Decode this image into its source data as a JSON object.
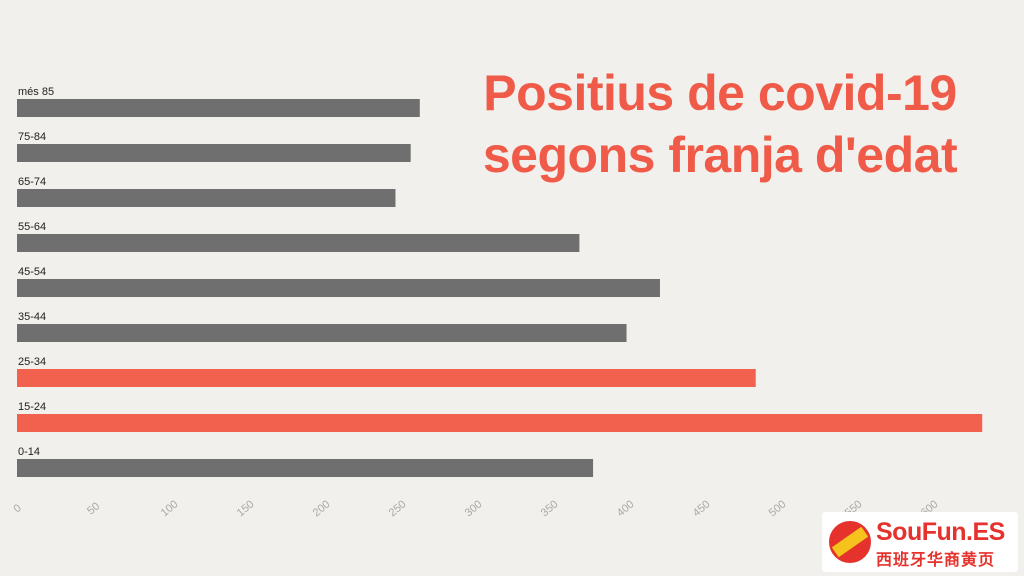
{
  "chart_data": {
    "type": "bar",
    "orientation": "horizontal",
    "title": [
      "Positius de covid-19",
      "segons franja d'edat"
    ],
    "categories": [
      "més 85",
      "75-84",
      "65-74",
      "55-64",
      "45-54",
      "35-44",
      "25-34",
      "15-24",
      "0-14"
    ],
    "values": [
      265,
      259,
      249,
      370,
      423,
      401,
      486,
      635,
      379
    ],
    "highlighted": [
      "25-34",
      "15-24"
    ],
    "xlim": [
      0,
      635
    ],
    "xticks": [
      "0",
      "50",
      "100",
      "150",
      "200",
      "250",
      "300",
      "350",
      "400",
      "450",
      "500",
      "550",
      "600"
    ],
    "grid": false,
    "colors": {
      "default": "#706f6f",
      "highlight": "#f2604e",
      "title": "#ef5b48",
      "tick": "#a8a8a8"
    }
  },
  "watermark": {
    "name": "SouFun.ES",
    "subtitle": "西班牙华商黄页"
  }
}
